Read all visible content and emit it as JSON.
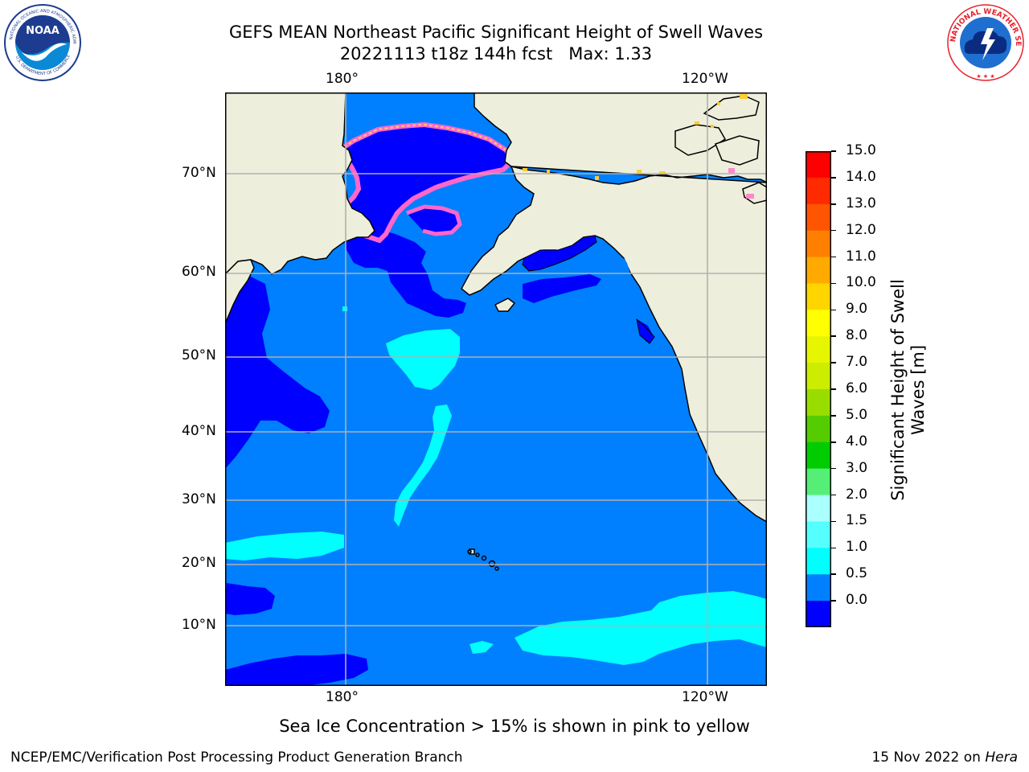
{
  "title": {
    "line1": "GEFS MEAN Northeast Pacific Significant Height of Swell Waves",
    "line2": "20221113 t18z 144h fcst   Max: 1.33"
  },
  "logos": {
    "left": {
      "name": "NOAA",
      "ring_text": "NATIONAL OCEANIC AND ATMOSPHERIC ADMINISTRATION · U.S. DEPARTMENT OF COMMERCE",
      "colors": [
        "#1d3c8f",
        "#0a8ad6",
        "#ffffff"
      ]
    },
    "right": {
      "name": "NATIONAL WEATHER SERVICE",
      "ring_text": "NATIONAL WEATHER SERVICE",
      "colors": [
        "#e8202a",
        "#1f6fd0",
        "#ffffff"
      ]
    }
  },
  "map": {
    "lon_labels_top": [
      "180°",
      "120°W"
    ],
    "lon_labels_bottom": [
      "180°",
      "120°W"
    ],
    "lat_labels": [
      "70°N",
      "60°N",
      "50°N",
      "40°N",
      "30°N",
      "20°N",
      "10°N"
    ],
    "land_color": "#eeeedc",
    "ocean_base_color": "#0080ff",
    "grid_color": "#b0b0b0"
  },
  "colorbar": {
    "label_line1": "Significant Height of Swell",
    "label_line2": "Waves [m]",
    "ticks": [
      "15.0",
      "14.0",
      "13.0",
      "12.0",
      "11.0",
      "10.0",
      "9.0",
      "8.0",
      "7.0",
      "6.0",
      "5.0",
      "4.0",
      "3.0",
      "2.0",
      "1.5",
      "1.0",
      "0.5",
      "0.0"
    ],
    "colors_top_to_bottom": [
      "#ff0000",
      "#ff2a00",
      "#ff5500",
      "#ff8000",
      "#ffaa00",
      "#ffd500",
      "#ffff00",
      "#e6f500",
      "#ccec00",
      "#99dd00",
      "#55cc00",
      "#00cc00",
      "#55ee77",
      "#aaffff",
      "#55ffff",
      "#00ffff",
      "#0080ff",
      "#0000ff"
    ]
  },
  "caption": "Sea Ice Concentration > 15% is shown in pink to yellow",
  "footer": {
    "left": "NCEP/EMC/Verification Post Processing Product Generation Branch",
    "right_date": "15 Nov 2022 on ",
    "right_machine": "Hera"
  }
}
